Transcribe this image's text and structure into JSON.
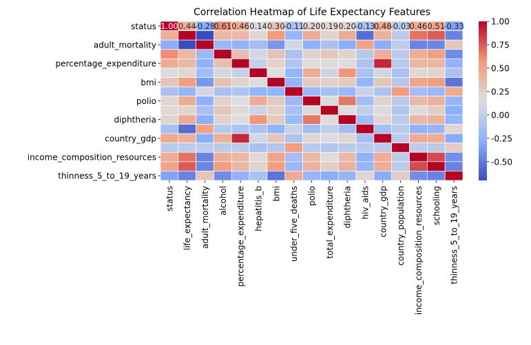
{
  "chart_data": {
    "type": "heatmap",
    "title": "Correlation Heatmap of Life Expectancy Features",
    "columns": [
      "status",
      "life_expectancy",
      "adult_mortality",
      "alcohol",
      "percentage_expenditure",
      "hepatitis_b",
      "bmi",
      "under_five_deaths",
      "polio",
      "total_expenditure",
      "diphtheria",
      "hiv_aids",
      "country_gdp",
      "country_population",
      "income_composition_resources",
      "schooling",
      "thinness_5_to_19_years"
    ],
    "row_tick_labels": [
      "status",
      "adult_mortality",
      "percentage_expenditure",
      "bmi",
      "polio",
      "diphtheria",
      "country_gdp",
      "income_composition_resources",
      "thinness_5_to_19_years"
    ],
    "first_row_annotations": [
      "1.00",
      "0.44",
      "-0.28",
      "0.61",
      "0.46",
      "0.14",
      "0.30",
      "-0.11",
      "0.20",
      "0.19",
      "0.20",
      "-0.13",
      "0.48",
      "-0.03",
      "0.46",
      "0.51",
      "-0.33"
    ],
    "matrix": [
      [
        1.0,
        0.44,
        -0.28,
        0.61,
        0.46,
        0.14,
        0.3,
        -0.11,
        0.2,
        0.19,
        0.2,
        -0.13,
        0.48,
        -0.03,
        0.46,
        0.51,
        -0.33
      ],
      [
        0.44,
        1.0,
        -0.7,
        0.4,
        0.38,
        0.2,
        0.56,
        -0.22,
        0.46,
        0.21,
        0.47,
        -0.56,
        0.43,
        -0.02,
        0.69,
        0.75,
        -0.47
      ],
      [
        -0.28,
        -0.7,
        1.0,
        -0.2,
        -0.25,
        -0.16,
        -0.38,
        0.09,
        -0.27,
        -0.12,
        -0.28,
        0.52,
        -0.28,
        -0.01,
        -0.46,
        -0.45,
        0.3
      ],
      [
        0.61,
        0.4,
        -0.2,
        1.0,
        0.34,
        0.09,
        0.33,
        -0.11,
        0.22,
        0.3,
        0.22,
        -0.05,
        0.44,
        -0.03,
        0.45,
        0.55,
        -0.43
      ],
      [
        0.46,
        0.38,
        -0.25,
        0.34,
        1.0,
        0.02,
        0.23,
        -0.09,
        0.15,
        0.17,
        0.14,
        -0.1,
        0.9,
        -0.03,
        0.4,
        0.39,
        -0.25
      ],
      [
        0.14,
        0.2,
        -0.16,
        0.09,
        0.02,
        1.0,
        0.15,
        -0.24,
        0.46,
        0.06,
        0.59,
        -0.11,
        0.08,
        -0.12,
        0.18,
        0.21,
        -0.11
      ],
      [
        0.3,
        0.56,
        -0.38,
        0.33,
        0.23,
        0.15,
        1.0,
        -0.24,
        0.28,
        0.24,
        0.28,
        -0.24,
        0.3,
        -0.07,
        0.51,
        0.55,
        -0.53
      ],
      [
        -0.11,
        -0.22,
        0.09,
        -0.11,
        -0.09,
        -0.24,
        -0.24,
        1.0,
        -0.19,
        -0.13,
        -0.2,
        0.04,
        -0.1,
        0.56,
        -0.15,
        -0.2,
        0.47
      ],
      [
        0.2,
        0.46,
        -0.27,
        0.22,
        0.15,
        0.46,
        0.28,
        -0.19,
        1.0,
        0.14,
        0.67,
        -0.16,
        0.21,
        -0.04,
        0.38,
        0.42,
        -0.22
      ],
      [
        0.19,
        0.21,
        -0.12,
        0.3,
        0.17,
        0.06,
        0.24,
        -0.13,
        0.14,
        1.0,
        0.15,
        0.0,
        0.14,
        -0.08,
        0.16,
        0.25,
        -0.28
      ],
      [
        0.2,
        0.47,
        -0.28,
        0.22,
        0.14,
        0.59,
        0.28,
        -0.2,
        0.67,
        0.15,
        1.0,
        -0.16,
        0.2,
        -0.03,
        0.38,
        0.42,
        -0.23
      ],
      [
        -0.13,
        -0.56,
        0.52,
        -0.05,
        -0.1,
        -0.11,
        -0.24,
        0.04,
        -0.16,
        0.0,
        -0.16,
        1.0,
        -0.14,
        -0.03,
        -0.25,
        -0.22,
        0.2
      ],
      [
        0.48,
        0.43,
        -0.28,
        0.44,
        0.9,
        0.08,
        0.3,
        -0.1,
        0.21,
        0.14,
        0.2,
        -0.14,
        1.0,
        -0.03,
        0.46,
        0.45,
        -0.29
      ],
      [
        -0.03,
        -0.02,
        -0.01,
        -0.03,
        -0.03,
        -0.12,
        -0.07,
        0.56,
        -0.04,
        -0.08,
        -0.03,
        -0.03,
        -0.03,
        1.0,
        -0.01,
        -0.03,
        0.26
      ],
      [
        0.46,
        0.69,
        -0.46,
        0.45,
        0.4,
        0.18,
        0.51,
        -0.15,
        0.38,
        0.16,
        0.38,
        -0.25,
        0.46,
        -0.01,
        1.0,
        0.8,
        -0.42
      ],
      [
        0.51,
        0.75,
        -0.45,
        0.55,
        0.39,
        0.21,
        0.55,
        -0.2,
        0.42,
        0.25,
        0.42,
        -0.22,
        0.45,
        -0.03,
        0.8,
        1.0,
        -0.47
      ],
      [
        -0.33,
        -0.47,
        0.3,
        -0.43,
        -0.25,
        -0.11,
        -0.53,
        0.47,
        -0.22,
        -0.28,
        -0.23,
        0.2,
        -0.29,
        0.26,
        -0.42,
        -0.47,
        1.0
      ]
    ],
    "color_scale": {
      "name": "coolwarm",
      "vmin": -0.7,
      "vmax": 1.0,
      "ticks": [
        "1.00",
        "0.75",
        "0.50",
        "0.25",
        "0.00",
        "-0.25",
        "-0.50"
      ],
      "tick_values": [
        1.0,
        0.75,
        0.5,
        0.25,
        0.0,
        -0.25,
        -0.5
      ]
    }
  }
}
